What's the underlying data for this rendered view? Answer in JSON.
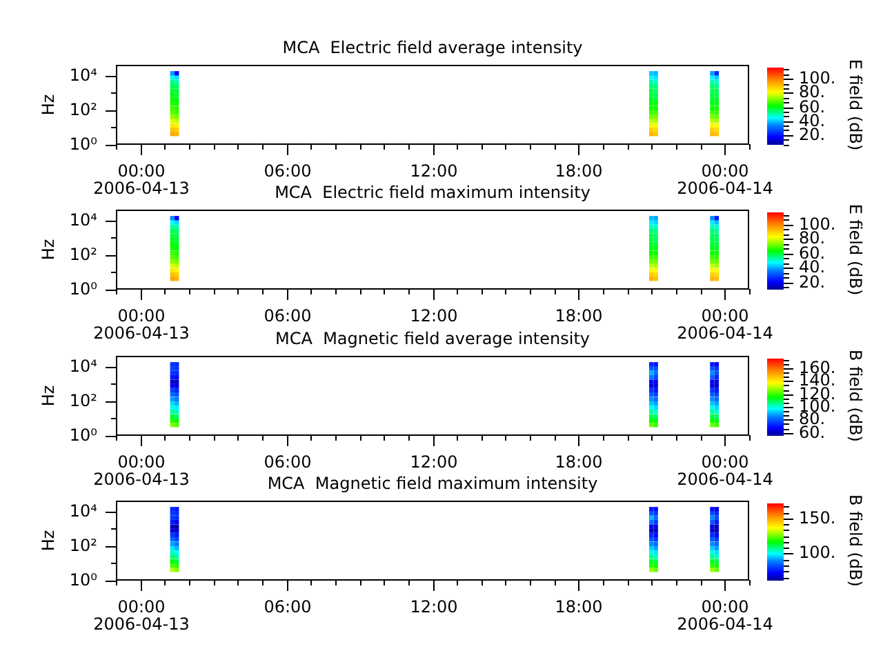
{
  "chart_data": [
    {
      "type": "scatter",
      "title": "MCA  Electric field average intensity",
      "ylabel": "Hz",
      "clabel": "E field (dB)",
      "marker": "square",
      "log": "y",
      "xlim": [
        "2006-04-12T23:00",
        "2006-04-14T01:00"
      ],
      "xticks": [
        {
          "value": "2006-04-12T23:00",
          "label": null
        },
        {
          "value": "2006-04-13T00:00",
          "label": "00:00\n2006-04-13"
        },
        {
          "value": "2006-04-13T01:00",
          "label": null
        },
        {
          "value": "2006-04-13T02:00",
          "label": null
        },
        {
          "value": "2006-04-13T03:00",
          "label": null
        },
        {
          "value": "2006-04-13T04:00",
          "label": null
        },
        {
          "value": "2006-04-13T05:00",
          "label": null
        },
        {
          "value": "2006-04-13T06:00",
          "label": "06:00"
        },
        {
          "value": "2006-04-13T07:00",
          "label": null
        },
        {
          "value": "2006-04-13T08:00",
          "label": null
        },
        {
          "value": "2006-04-13T09:00",
          "label": null
        },
        {
          "value": "2006-04-13T10:00",
          "label": null
        },
        {
          "value": "2006-04-13T11:00",
          "label": null
        },
        {
          "value": "2006-04-13T12:00",
          "label": "12:00"
        },
        {
          "value": "2006-04-13T13:00",
          "label": null
        },
        {
          "value": "2006-04-13T14:00",
          "label": null
        },
        {
          "value": "2006-04-13T15:00",
          "label": null
        },
        {
          "value": "2006-04-13T16:00",
          "label": null
        },
        {
          "value": "2006-04-13T17:00",
          "label": null
        },
        {
          "value": "2006-04-13T18:00",
          "label": "18:00"
        },
        {
          "value": "2006-04-13T19:00",
          "label": null
        },
        {
          "value": "2006-04-13T20:00",
          "label": null
        },
        {
          "value": "2006-04-13T21:00",
          "label": null
        },
        {
          "value": "2006-04-13T22:00",
          "label": null
        },
        {
          "value": "2006-04-13T23:00",
          "label": null
        },
        {
          "value": "2006-04-14T00:00",
          "label": "00:00\n2006-04-14"
        },
        {
          "value": "2006-04-14T01:00",
          "label": null
        }
      ],
      "ylim": [
        1,
        40000
      ],
      "yticks": [
        {
          "value": 1,
          "label": "10⁰"
        },
        {
          "value": 10,
          "label": null
        },
        {
          "value": 100,
          "label": "10²"
        },
        {
          "value": 1000,
          "label": null
        },
        {
          "value": 10000,
          "label": "10⁴"
        }
      ],
      "clim": [
        6,
        116
      ],
      "cticks": [
        {
          "value": 6.7,
          "label": null
        },
        {
          "value": 13.3,
          "label": null
        },
        {
          "value": 20,
          "label": "20."
        },
        {
          "value": 26.7,
          "label": null
        },
        {
          "value": 33.3,
          "label": null
        },
        {
          "value": 40,
          "label": "40."
        },
        {
          "value": 46.7,
          "label": null
        },
        {
          "value": 53.3,
          "label": null
        },
        {
          "value": 60,
          "label": "60."
        },
        {
          "value": 66.7,
          "label": null
        },
        {
          "value": 73.3,
          "label": null
        },
        {
          "value": 80,
          "label": "80."
        },
        {
          "value": 86.7,
          "label": null
        },
        {
          "value": 93.3,
          "label": null
        },
        {
          "value": 100,
          "label": "100."
        },
        {
          "value": 106.7,
          "label": null
        },
        {
          "value": 113.3,
          "label": null
        }
      ],
      "x": [
        "2006-04-13T01:19",
        "2006-04-13T01:19",
        "2006-04-13T01:19",
        "2006-04-13T01:19",
        "2006-04-13T01:19",
        "2006-04-13T01:19",
        "2006-04-13T01:19",
        "2006-04-13T01:19",
        "2006-04-13T01:19",
        "2006-04-13T01:19",
        "2006-04-13T01:19",
        "2006-04-13T01:19",
        "2006-04-13T01:19",
        "2006-04-13T01:19",
        "2006-04-13T01:19",
        "2006-04-13T01:30",
        "2006-04-13T01:30",
        "2006-04-13T01:30",
        "2006-04-13T01:30",
        "2006-04-13T01:30",
        "2006-04-13T01:30",
        "2006-04-13T01:30",
        "2006-04-13T01:30",
        "2006-04-13T01:30",
        "2006-04-13T01:30",
        "2006-04-13T01:30",
        "2006-04-13T01:30",
        "2006-04-13T01:30",
        "2006-04-13T01:30",
        "2006-04-13T01:30",
        "2006-04-13T20:59",
        "2006-04-13T20:59",
        "2006-04-13T20:59",
        "2006-04-13T20:59",
        "2006-04-13T20:59",
        "2006-04-13T20:59",
        "2006-04-13T20:59",
        "2006-04-13T20:59",
        "2006-04-13T20:59",
        "2006-04-13T20:59",
        "2006-04-13T20:59",
        "2006-04-13T20:59",
        "2006-04-13T20:59",
        "2006-04-13T20:59",
        "2006-04-13T20:59",
        "2006-04-13T21:10",
        "2006-04-13T21:10",
        "2006-04-13T21:10",
        "2006-04-13T21:10",
        "2006-04-13T21:10",
        "2006-04-13T21:10",
        "2006-04-13T21:10",
        "2006-04-13T21:10",
        "2006-04-13T21:10",
        "2006-04-13T21:10",
        "2006-04-13T21:10",
        "2006-04-13T21:10",
        "2006-04-13T21:10",
        "2006-04-13T21:10",
        "2006-04-13T21:10",
        "2006-04-13T23:29",
        "2006-04-13T23:29",
        "2006-04-13T23:29",
        "2006-04-13T23:29",
        "2006-04-13T23:29",
        "2006-04-13T23:29",
        "2006-04-13T23:29",
        "2006-04-13T23:29",
        "2006-04-13T23:29",
        "2006-04-13T23:29",
        "2006-04-13T23:29",
        "2006-04-13T23:29",
        "2006-04-13T23:29",
        "2006-04-13T23:29",
        "2006-04-13T23:29",
        "2006-04-13T23:40",
        "2006-04-13T23:40",
        "2006-04-13T23:40",
        "2006-04-13T23:40",
        "2006-04-13T23:40",
        "2006-04-13T23:40",
        "2006-04-13T23:40",
        "2006-04-13T23:40",
        "2006-04-13T23:40",
        "2006-04-13T23:40",
        "2006-04-13T23:40",
        "2006-04-13T23:40",
        "2006-04-13T23:40",
        "2006-04-13T23:40",
        "2006-04-13T23:40"
      ],
      "values": [
        4.2,
        7.5,
        13,
        24,
        42,
        75,
        130,
        240,
        420,
        750,
        1300,
        2400,
        4200,
        7500,
        13000,
        4.2,
        7.5,
        13,
        24,
        42,
        75,
        130,
        240,
        420,
        750,
        1300,
        2400,
        4200,
        7500,
        13000,
        4.2,
        7.5,
        13,
        24,
        42,
        75,
        130,
        240,
        420,
        750,
        1300,
        2400,
        4200,
        7500,
        13000,
        4.2,
        7.5,
        13,
        24,
        42,
        75,
        130,
        240,
        420,
        750,
        1300,
        2400,
        4200,
        7500,
        13000,
        4.2,
        7.5,
        13,
        24,
        42,
        75,
        130,
        240,
        420,
        750,
        1300,
        2400,
        4200,
        7500,
        13000,
        4.2,
        7.5,
        13,
        24,
        42,
        75,
        130,
        240,
        420,
        750,
        1300,
        2400,
        4200,
        7500,
        13000
      ],
      "cvalues": [
        94,
        90,
        84,
        78,
        72,
        68,
        66,
        63,
        62,
        60,
        58,
        56,
        52,
        46,
        36,
        92,
        88,
        82,
        76,
        70,
        66,
        64,
        62,
        60,
        58,
        57,
        55,
        50,
        42,
        18,
        92,
        88,
        82,
        76,
        70,
        66,
        62,
        60,
        58,
        57,
        56,
        54,
        50,
        44,
        40,
        90,
        86,
        80,
        74,
        70,
        66,
        62,
        60,
        58,
        56,
        55,
        53,
        48,
        42,
        38,
        92,
        88,
        82,
        76,
        70,
        66,
        62,
        60,
        58,
        57,
        56,
        54,
        50,
        44,
        36,
        90,
        86,
        80,
        74,
        69,
        65,
        62,
        60,
        58,
        56,
        55,
        52,
        48,
        40,
        22
      ]
    },
    {
      "type": "scatter",
      "title": "MCA  Electric field maximum intensity",
      "ylabel": "Hz",
      "clabel": "E field (dB)",
      "marker": "square",
      "log": "y",
      "xlim": [
        "2006-04-12T23:00",
        "2006-04-14T01:00"
      ],
      "xticks": [
        {
          "value": "2006-04-12T23:00",
          "label": null
        },
        {
          "value": "2006-04-13T00:00",
          "label": "00:00\n2006-04-13"
        },
        {
          "value": "2006-04-13T01:00",
          "label": null
        },
        {
          "value": "2006-04-13T02:00",
          "label": null
        },
        {
          "value": "2006-04-13T03:00",
          "label": null
        },
        {
          "value": "2006-04-13T04:00",
          "label": null
        },
        {
          "value": "2006-04-13T05:00",
          "label": null
        },
        {
          "value": "2006-04-13T06:00",
          "label": "06:00"
        },
        {
          "value": "2006-04-13T07:00",
          "label": null
        },
        {
          "value": "2006-04-13T08:00",
          "label": null
        },
        {
          "value": "2006-04-13T09:00",
          "label": null
        },
        {
          "value": "2006-04-13T10:00",
          "label": null
        },
        {
          "value": "2006-04-13T11:00",
          "label": null
        },
        {
          "value": "2006-04-13T12:00",
          "label": "12:00"
        },
        {
          "value": "2006-04-13T13:00",
          "label": null
        },
        {
          "value": "2006-04-13T14:00",
          "label": null
        },
        {
          "value": "2006-04-13T15:00",
          "label": null
        },
        {
          "value": "2006-04-13T16:00",
          "label": null
        },
        {
          "value": "2006-04-13T17:00",
          "label": null
        },
        {
          "value": "2006-04-13T18:00",
          "label": "18:00"
        },
        {
          "value": "2006-04-13T19:00",
          "label": null
        },
        {
          "value": "2006-04-13T20:00",
          "label": null
        },
        {
          "value": "2006-04-13T21:00",
          "label": null
        },
        {
          "value": "2006-04-13T22:00",
          "label": null
        },
        {
          "value": "2006-04-13T23:00",
          "label": null
        },
        {
          "value": "2006-04-14T00:00",
          "label": "00:00\n2006-04-14"
        },
        {
          "value": "2006-04-14T01:00",
          "label": null
        }
      ],
      "ylim": [
        1,
        40000
      ],
      "yticks": [
        {
          "value": 1,
          "label": "10⁰"
        },
        {
          "value": 10,
          "label": null
        },
        {
          "value": 100,
          "label": "10²"
        },
        {
          "value": 1000,
          "label": null
        },
        {
          "value": 10000,
          "label": "10⁴"
        }
      ],
      "clim": [
        10,
        117
      ],
      "cticks": [
        {
          "value": 13.3,
          "label": null
        },
        {
          "value": 20,
          "label": "20."
        },
        {
          "value": 26.7,
          "label": null
        },
        {
          "value": 33.3,
          "label": null
        },
        {
          "value": 40,
          "label": "40."
        },
        {
          "value": 46.7,
          "label": null
        },
        {
          "value": 53.3,
          "label": null
        },
        {
          "value": 60,
          "label": "60."
        },
        {
          "value": 66.7,
          "label": null
        },
        {
          "value": 73.3,
          "label": null
        },
        {
          "value": 80,
          "label": "80."
        },
        {
          "value": 86.7,
          "label": null
        },
        {
          "value": 93.3,
          "label": null
        },
        {
          "value": 100,
          "label": "100."
        },
        {
          "value": 106.7,
          "label": null
        },
        {
          "value": 113.3,
          "label": null
        }
      ],
      "x": [
        "2006-04-13T01:19",
        "2006-04-13T01:19",
        "2006-04-13T01:19",
        "2006-04-13T01:19",
        "2006-04-13T01:19",
        "2006-04-13T01:19",
        "2006-04-13T01:19",
        "2006-04-13T01:19",
        "2006-04-13T01:19",
        "2006-04-13T01:19",
        "2006-04-13T01:19",
        "2006-04-13T01:19",
        "2006-04-13T01:19",
        "2006-04-13T01:19",
        "2006-04-13T01:19",
        "2006-04-13T01:30",
        "2006-04-13T01:30",
        "2006-04-13T01:30",
        "2006-04-13T01:30",
        "2006-04-13T01:30",
        "2006-04-13T01:30",
        "2006-04-13T01:30",
        "2006-04-13T01:30",
        "2006-04-13T01:30",
        "2006-04-13T01:30",
        "2006-04-13T01:30",
        "2006-04-13T01:30",
        "2006-04-13T01:30",
        "2006-04-13T01:30",
        "2006-04-13T01:30",
        "2006-04-13T20:59",
        "2006-04-13T20:59",
        "2006-04-13T20:59",
        "2006-04-13T20:59",
        "2006-04-13T20:59",
        "2006-04-13T20:59",
        "2006-04-13T20:59",
        "2006-04-13T20:59",
        "2006-04-13T20:59",
        "2006-04-13T20:59",
        "2006-04-13T20:59",
        "2006-04-13T20:59",
        "2006-04-13T20:59",
        "2006-04-13T20:59",
        "2006-04-13T20:59",
        "2006-04-13T21:10",
        "2006-04-13T21:10",
        "2006-04-13T21:10",
        "2006-04-13T21:10",
        "2006-04-13T21:10",
        "2006-04-13T21:10",
        "2006-04-13T21:10",
        "2006-04-13T21:10",
        "2006-04-13T21:10",
        "2006-04-13T21:10",
        "2006-04-13T21:10",
        "2006-04-13T21:10",
        "2006-04-13T21:10",
        "2006-04-13T21:10",
        "2006-04-13T21:10",
        "2006-04-13T23:29",
        "2006-04-13T23:29",
        "2006-04-13T23:29",
        "2006-04-13T23:29",
        "2006-04-13T23:29",
        "2006-04-13T23:29",
        "2006-04-13T23:29",
        "2006-04-13T23:29",
        "2006-04-13T23:29",
        "2006-04-13T23:29",
        "2006-04-13T23:29",
        "2006-04-13T23:29",
        "2006-04-13T23:29",
        "2006-04-13T23:29",
        "2006-04-13T23:29",
        "2006-04-13T23:40",
        "2006-04-13T23:40",
        "2006-04-13T23:40",
        "2006-04-13T23:40",
        "2006-04-13T23:40",
        "2006-04-13T23:40",
        "2006-04-13T23:40",
        "2006-04-13T23:40",
        "2006-04-13T23:40",
        "2006-04-13T23:40",
        "2006-04-13T23:40",
        "2006-04-13T23:40",
        "2006-04-13T23:40",
        "2006-04-13T23:40",
        "2006-04-13T23:40"
      ],
      "values": [
        4.2,
        7.5,
        13,
        24,
        42,
        75,
        130,
        240,
        420,
        750,
        1300,
        2400,
        4200,
        7500,
        13000,
        4.2,
        7.5,
        13,
        24,
        42,
        75,
        130,
        240,
        420,
        750,
        1300,
        2400,
        4200,
        7500,
        13000,
        4.2,
        7.5,
        13,
        24,
        42,
        75,
        130,
        240,
        420,
        750,
        1300,
        2400,
        4200,
        7500,
        13000,
        4.2,
        7.5,
        13,
        24,
        42,
        75,
        130,
        240,
        420,
        750,
        1300,
        2400,
        4200,
        7500,
        13000,
        4.2,
        7.5,
        13,
        24,
        42,
        75,
        130,
        240,
        420,
        750,
        1300,
        2400,
        4200,
        7500,
        13000,
        4.2,
        7.5,
        13,
        24,
        42,
        75,
        130,
        240,
        420,
        750,
        1300,
        2400,
        4200,
        7500,
        13000
      ],
      "cvalues": [
        96,
        92,
        86,
        80,
        74,
        70,
        68,
        65,
        64,
        62,
        60,
        58,
        54,
        48,
        38,
        94,
        90,
        84,
        78,
        72,
        68,
        66,
        64,
        62,
        60,
        59,
        57,
        52,
        44,
        20,
        94,
        90,
        84,
        78,
        72,
        68,
        64,
        62,
        60,
        59,
        58,
        56,
        52,
        46,
        42,
        92,
        88,
        82,
        76,
        72,
        68,
        64,
        62,
        60,
        58,
        57,
        55,
        50,
        44,
        40,
        94,
        90,
        84,
        78,
        72,
        68,
        64,
        62,
        60,
        59,
        58,
        56,
        52,
        46,
        38,
        92,
        88,
        82,
        76,
        71,
        67,
        64,
        62,
        60,
        58,
        57,
        54,
        50,
        42,
        24
      ]
    },
    {
      "type": "scatter",
      "title": "MCA  Magnetic field average intensity",
      "ylabel": "Hz",
      "clabel": "B field (dB)",
      "marker": "square",
      "log": "y",
      "xlim": [
        "2006-04-12T23:00",
        "2006-04-14T01:00"
      ],
      "xticks": [
        {
          "value": "2006-04-12T23:00",
          "label": null
        },
        {
          "value": "2006-04-13T00:00",
          "label": "00:00\n2006-04-13"
        },
        {
          "value": "2006-04-13T01:00",
          "label": null
        },
        {
          "value": "2006-04-13T02:00",
          "label": null
        },
        {
          "value": "2006-04-13T03:00",
          "label": null
        },
        {
          "value": "2006-04-13T04:00",
          "label": null
        },
        {
          "value": "2006-04-13T05:00",
          "label": null
        },
        {
          "value": "2006-04-13T06:00",
          "label": "06:00"
        },
        {
          "value": "2006-04-13T07:00",
          "label": null
        },
        {
          "value": "2006-04-13T08:00",
          "label": null
        },
        {
          "value": "2006-04-13T09:00",
          "label": null
        },
        {
          "value": "2006-04-13T10:00",
          "label": null
        },
        {
          "value": "2006-04-13T11:00",
          "label": null
        },
        {
          "value": "2006-04-13T12:00",
          "label": "12:00"
        },
        {
          "value": "2006-04-13T13:00",
          "label": null
        },
        {
          "value": "2006-04-13T14:00",
          "label": null
        },
        {
          "value": "2006-04-13T15:00",
          "label": null
        },
        {
          "value": "2006-04-13T16:00",
          "label": null
        },
        {
          "value": "2006-04-13T17:00",
          "label": null
        },
        {
          "value": "2006-04-13T18:00",
          "label": "18:00"
        },
        {
          "value": "2006-04-13T19:00",
          "label": null
        },
        {
          "value": "2006-04-13T20:00",
          "label": null
        },
        {
          "value": "2006-04-13T21:00",
          "label": null
        },
        {
          "value": "2006-04-13T22:00",
          "label": null
        },
        {
          "value": "2006-04-13T23:00",
          "label": null
        },
        {
          "value": "2006-04-14T00:00",
          "label": "00:00\n2006-04-14"
        },
        {
          "value": "2006-04-14T01:00",
          "label": null
        }
      ],
      "ylim": [
        1,
        40000
      ],
      "yticks": [
        {
          "value": 1,
          "label": "10⁰"
        },
        {
          "value": 10,
          "label": null
        },
        {
          "value": 100,
          "label": "10²"
        },
        {
          "value": 1000,
          "label": null
        },
        {
          "value": 10000,
          "label": "10⁴"
        }
      ],
      "clim": [
        55,
        175
      ],
      "cticks": [
        {
          "value": 60,
          "label": "60."
        },
        {
          "value": 66.7,
          "label": null
        },
        {
          "value": 73.3,
          "label": null
        },
        {
          "value": 80,
          "label": "80."
        },
        {
          "value": 86.7,
          "label": null
        },
        {
          "value": 93.3,
          "label": null
        },
        {
          "value": 100,
          "label": "100."
        },
        {
          "value": 106.7,
          "label": null
        },
        {
          "value": 113.3,
          "label": null
        },
        {
          "value": 120,
          "label": "120."
        },
        {
          "value": 126.7,
          "label": null
        },
        {
          "value": 133.3,
          "label": null
        },
        {
          "value": 140,
          "label": "140."
        },
        {
          "value": 146.7,
          "label": null
        },
        {
          "value": 153.3,
          "label": null
        },
        {
          "value": 160,
          "label": "160."
        },
        {
          "value": 166.7,
          "label": null
        },
        {
          "value": 173.3,
          "label": null
        }
      ],
      "x": [
        "2006-04-13T01:19",
        "2006-04-13T01:19",
        "2006-04-13T01:19",
        "2006-04-13T01:19",
        "2006-04-13T01:19",
        "2006-04-13T01:19",
        "2006-04-13T01:19",
        "2006-04-13T01:19",
        "2006-04-13T01:19",
        "2006-04-13T01:19",
        "2006-04-13T01:19",
        "2006-04-13T01:19",
        "2006-04-13T01:19",
        "2006-04-13T01:19",
        "2006-04-13T01:19",
        "2006-04-13T01:30",
        "2006-04-13T01:30",
        "2006-04-13T01:30",
        "2006-04-13T01:30",
        "2006-04-13T01:30",
        "2006-04-13T01:30",
        "2006-04-13T01:30",
        "2006-04-13T01:30",
        "2006-04-13T01:30",
        "2006-04-13T01:30",
        "2006-04-13T01:30",
        "2006-04-13T01:30",
        "2006-04-13T01:30",
        "2006-04-13T01:30",
        "2006-04-13T01:30",
        "2006-04-13T20:59",
        "2006-04-13T20:59",
        "2006-04-13T20:59",
        "2006-04-13T20:59",
        "2006-04-13T20:59",
        "2006-04-13T20:59",
        "2006-04-13T20:59",
        "2006-04-13T20:59",
        "2006-04-13T20:59",
        "2006-04-13T20:59",
        "2006-04-13T20:59",
        "2006-04-13T20:59",
        "2006-04-13T20:59",
        "2006-04-13T20:59",
        "2006-04-13T20:59",
        "2006-04-13T21:10",
        "2006-04-13T21:10",
        "2006-04-13T21:10",
        "2006-04-13T21:10",
        "2006-04-13T21:10",
        "2006-04-13T21:10",
        "2006-04-13T21:10",
        "2006-04-13T21:10",
        "2006-04-13T21:10",
        "2006-04-13T21:10",
        "2006-04-13T21:10",
        "2006-04-13T21:10",
        "2006-04-13T21:10",
        "2006-04-13T21:10",
        "2006-04-13T21:10",
        "2006-04-13T23:29",
        "2006-04-13T23:29",
        "2006-04-13T23:29",
        "2006-04-13T23:29",
        "2006-04-13T23:29",
        "2006-04-13T23:29",
        "2006-04-13T23:29",
        "2006-04-13T23:29",
        "2006-04-13T23:29",
        "2006-04-13T23:29",
        "2006-04-13T23:29",
        "2006-04-13T23:29",
        "2006-04-13T23:29",
        "2006-04-13T23:29",
        "2006-04-13T23:29",
        "2006-04-13T23:40",
        "2006-04-13T23:40",
        "2006-04-13T23:40",
        "2006-04-13T23:40",
        "2006-04-13T23:40",
        "2006-04-13T23:40",
        "2006-04-13T23:40",
        "2006-04-13T23:40",
        "2006-04-13T23:40",
        "2006-04-13T23:40",
        "2006-04-13T23:40",
        "2006-04-13T23:40",
        "2006-04-13T23:40",
        "2006-04-13T23:40",
        "2006-04-13T23:40"
      ],
      "values": [
        4.2,
        7.5,
        13,
        24,
        42,
        75,
        130,
        240,
        420,
        750,
        1300,
        2400,
        4200,
        7500,
        13000,
        4.2,
        7.5,
        13,
        24,
        42,
        75,
        130,
        240,
        420,
        750,
        1300,
        2400,
        4200,
        7500,
        13000,
        4.2,
        7.5,
        13,
        24,
        42,
        75,
        130,
        240,
        420,
        750,
        1300,
        2400,
        4200,
        7500,
        13000,
        4.2,
        7.5,
        13,
        24,
        42,
        75,
        130,
        240,
        420,
        750,
        1300,
        2400,
        4200,
        7500,
        13000,
        4.2,
        7.5,
        13,
        24,
        42,
        75,
        130,
        240,
        420,
        750,
        1300,
        2400,
        4200,
        7500,
        13000,
        4.2,
        7.5,
        13,
        24,
        42,
        75,
        130,
        240,
        420,
        750,
        1300,
        2400,
        4200,
        7500,
        13000
      ],
      "cvalues": [
        126,
        118,
        112,
        104,
        99,
        94,
        88,
        82,
        76,
        66,
        62,
        70,
        74,
        76,
        74,
        122,
        116,
        108,
        102,
        96,
        90,
        84,
        78,
        72,
        64,
        60,
        68,
        72,
        74,
        72,
        124,
        116,
        110,
        104,
        98,
        92,
        86,
        80,
        74,
        64,
        68,
        84,
        90,
        80,
        72,
        120,
        114,
        108,
        100,
        94,
        88,
        82,
        76,
        70,
        62,
        64,
        76,
        82,
        78,
        70,
        124,
        116,
        110,
        104,
        98,
        92,
        86,
        80,
        74,
        64,
        66,
        80,
        86,
        78,
        70,
        120,
        114,
        108,
        100,
        94,
        88,
        82,
        76,
        70,
        62,
        62,
        72,
        78,
        74,
        66
      ]
    },
    {
      "type": "scatter",
      "title": "MCA  Magnetic field maximum intensity",
      "ylabel": "Hz",
      "clabel": "B field (dB)",
      "marker": "square",
      "log": "y",
      "xlim": [
        "2006-04-12T23:00",
        "2006-04-14T01:00"
      ],
      "xticks": [
        {
          "value": "2006-04-12T23:00",
          "label": null
        },
        {
          "value": "2006-04-13T00:00",
          "label": "00:00\n2006-04-13"
        },
        {
          "value": "2006-04-13T01:00",
          "label": null
        },
        {
          "value": "2006-04-13T02:00",
          "label": null
        },
        {
          "value": "2006-04-13T03:00",
          "label": null
        },
        {
          "value": "2006-04-13T04:00",
          "label": null
        },
        {
          "value": "2006-04-13T05:00",
          "label": null
        },
        {
          "value": "2006-04-13T06:00",
          "label": "06:00"
        },
        {
          "value": "2006-04-13T07:00",
          "label": null
        },
        {
          "value": "2006-04-13T08:00",
          "label": null
        },
        {
          "value": "2006-04-13T09:00",
          "label": null
        },
        {
          "value": "2006-04-13T10:00",
          "label": null
        },
        {
          "value": "2006-04-13T11:00",
          "label": null
        },
        {
          "value": "2006-04-13T12:00",
          "label": "12:00"
        },
        {
          "value": "2006-04-13T13:00",
          "label": null
        },
        {
          "value": "2006-04-13T14:00",
          "label": null
        },
        {
          "value": "2006-04-13T15:00",
          "label": null
        },
        {
          "value": "2006-04-13T16:00",
          "label": null
        },
        {
          "value": "2006-04-13T17:00",
          "label": null
        },
        {
          "value": "2006-04-13T18:00",
          "label": "18:00"
        },
        {
          "value": "2006-04-13T19:00",
          "label": null
        },
        {
          "value": "2006-04-13T20:00",
          "label": null
        },
        {
          "value": "2006-04-13T21:00",
          "label": null
        },
        {
          "value": "2006-04-13T22:00",
          "label": null
        },
        {
          "value": "2006-04-13T23:00",
          "label": null
        },
        {
          "value": "2006-04-14T00:00",
          "label": "00:00\n2006-04-14"
        },
        {
          "value": "2006-04-14T01:00",
          "label": null
        }
      ],
      "ylim": [
        1,
        40000
      ],
      "yticks": [
        {
          "value": 1,
          "label": "10⁰"
        },
        {
          "value": 10,
          "label": null
        },
        {
          "value": 100,
          "label": "10²"
        },
        {
          "value": 1000,
          "label": null
        },
        {
          "value": 10000,
          "label": "10⁴"
        }
      ],
      "clim": [
        62,
        171
      ],
      "cticks": [
        {
          "value": 66.7,
          "label": null
        },
        {
          "value": 75,
          "label": null
        },
        {
          "value": 83.3,
          "label": null
        },
        {
          "value": 91.7,
          "label": null
        },
        {
          "value": 100,
          "label": "100."
        },
        {
          "value": 108.3,
          "label": null
        },
        {
          "value": 116.7,
          "label": null
        },
        {
          "value": 125,
          "label": null
        },
        {
          "value": 133.3,
          "label": null
        },
        {
          "value": 141.7,
          "label": null
        },
        {
          "value": 150,
          "label": "150."
        },
        {
          "value": 158.3,
          "label": null
        },
        {
          "value": 166.7,
          "label": null
        }
      ],
      "x": [
        "2006-04-13T01:19",
        "2006-04-13T01:19",
        "2006-04-13T01:19",
        "2006-04-13T01:19",
        "2006-04-13T01:19",
        "2006-04-13T01:19",
        "2006-04-13T01:19",
        "2006-04-13T01:19",
        "2006-04-13T01:19",
        "2006-04-13T01:19",
        "2006-04-13T01:19",
        "2006-04-13T01:19",
        "2006-04-13T01:19",
        "2006-04-13T01:19",
        "2006-04-13T01:19",
        "2006-04-13T01:30",
        "2006-04-13T01:30",
        "2006-04-13T01:30",
        "2006-04-13T01:30",
        "2006-04-13T01:30",
        "2006-04-13T01:30",
        "2006-04-13T01:30",
        "2006-04-13T01:30",
        "2006-04-13T01:30",
        "2006-04-13T01:30",
        "2006-04-13T01:30",
        "2006-04-13T01:30",
        "2006-04-13T01:30",
        "2006-04-13T01:30",
        "2006-04-13T01:30",
        "2006-04-13T20:59",
        "2006-04-13T20:59",
        "2006-04-13T20:59",
        "2006-04-13T20:59",
        "2006-04-13T20:59",
        "2006-04-13T20:59",
        "2006-04-13T20:59",
        "2006-04-13T20:59",
        "2006-04-13T20:59",
        "2006-04-13T20:59",
        "2006-04-13T20:59",
        "2006-04-13T20:59",
        "2006-04-13T20:59",
        "2006-04-13T20:59",
        "2006-04-13T20:59",
        "2006-04-13T21:10",
        "2006-04-13T21:10",
        "2006-04-13T21:10",
        "2006-04-13T21:10",
        "2006-04-13T21:10",
        "2006-04-13T21:10",
        "2006-04-13T21:10",
        "2006-04-13T21:10",
        "2006-04-13T21:10",
        "2006-04-13T21:10",
        "2006-04-13T21:10",
        "2006-04-13T21:10",
        "2006-04-13T21:10",
        "2006-04-13T21:10",
        "2006-04-13T21:10",
        "2006-04-13T23:29",
        "2006-04-13T23:29",
        "2006-04-13T23:29",
        "2006-04-13T23:29",
        "2006-04-13T23:29",
        "2006-04-13T23:29",
        "2006-04-13T23:29",
        "2006-04-13T23:29",
        "2006-04-13T23:29",
        "2006-04-13T23:29",
        "2006-04-13T23:29",
        "2006-04-13T23:29",
        "2006-04-13T23:29",
        "2006-04-13T23:29",
        "2006-04-13T23:29",
        "2006-04-13T23:40",
        "2006-04-13T23:40",
        "2006-04-13T23:40",
        "2006-04-13T23:40",
        "2006-04-13T23:40",
        "2006-04-13T23:40",
        "2006-04-13T23:40",
        "2006-04-13T23:40",
        "2006-04-13T23:40",
        "2006-04-13T23:40",
        "2006-04-13T23:40",
        "2006-04-13T23:40",
        "2006-04-13T23:40",
        "2006-04-13T23:40",
        "2006-04-13T23:40"
      ],
      "values": [
        4.2,
        7.5,
        13,
        24,
        42,
        75,
        130,
        240,
        420,
        750,
        1300,
        2400,
        4200,
        7500,
        13000,
        4.2,
        7.5,
        13,
        24,
        42,
        75,
        130,
        240,
        420,
        750,
        1300,
        2400,
        4200,
        7500,
        13000,
        4.2,
        7.5,
        13,
        24,
        42,
        75,
        130,
        240,
        420,
        750,
        1300,
        2400,
        4200,
        7500,
        13000,
        4.2,
        7.5,
        13,
        24,
        42,
        75,
        130,
        240,
        420,
        750,
        1300,
        2400,
        4200,
        7500,
        13000,
        4.2,
        7.5,
        13,
        24,
        42,
        75,
        130,
        240,
        420,
        750,
        1300,
        2400,
        4200,
        7500,
        13000,
        4.2,
        7.5,
        13,
        24,
        42,
        75,
        130,
        240,
        420,
        750,
        1300,
        2400,
        4200,
        7500,
        13000
      ],
      "cvalues": [
        130,
        122,
        116,
        110,
        104,
        98,
        92,
        86,
        80,
        70,
        66,
        76,
        80,
        80,
        78,
        126,
        120,
        112,
        106,
        100,
        94,
        88,
        82,
        76,
        68,
        64,
        72,
        78,
        78,
        76,
        128,
        120,
        114,
        108,
        102,
        96,
        90,
        84,
        78,
        68,
        72,
        88,
        94,
        84,
        76,
        124,
        118,
        112,
        104,
        98,
        92,
        86,
        80,
        74,
        66,
        68,
        80,
        86,
        80,
        74,
        128,
        120,
        114,
        108,
        102,
        96,
        90,
        84,
        78,
        68,
        70,
        84,
        90,
        82,
        74,
        124,
        118,
        112,
        104,
        98,
        92,
        86,
        80,
        74,
        66,
        66,
        76,
        82,
        78,
        70
      ]
    }
  ]
}
